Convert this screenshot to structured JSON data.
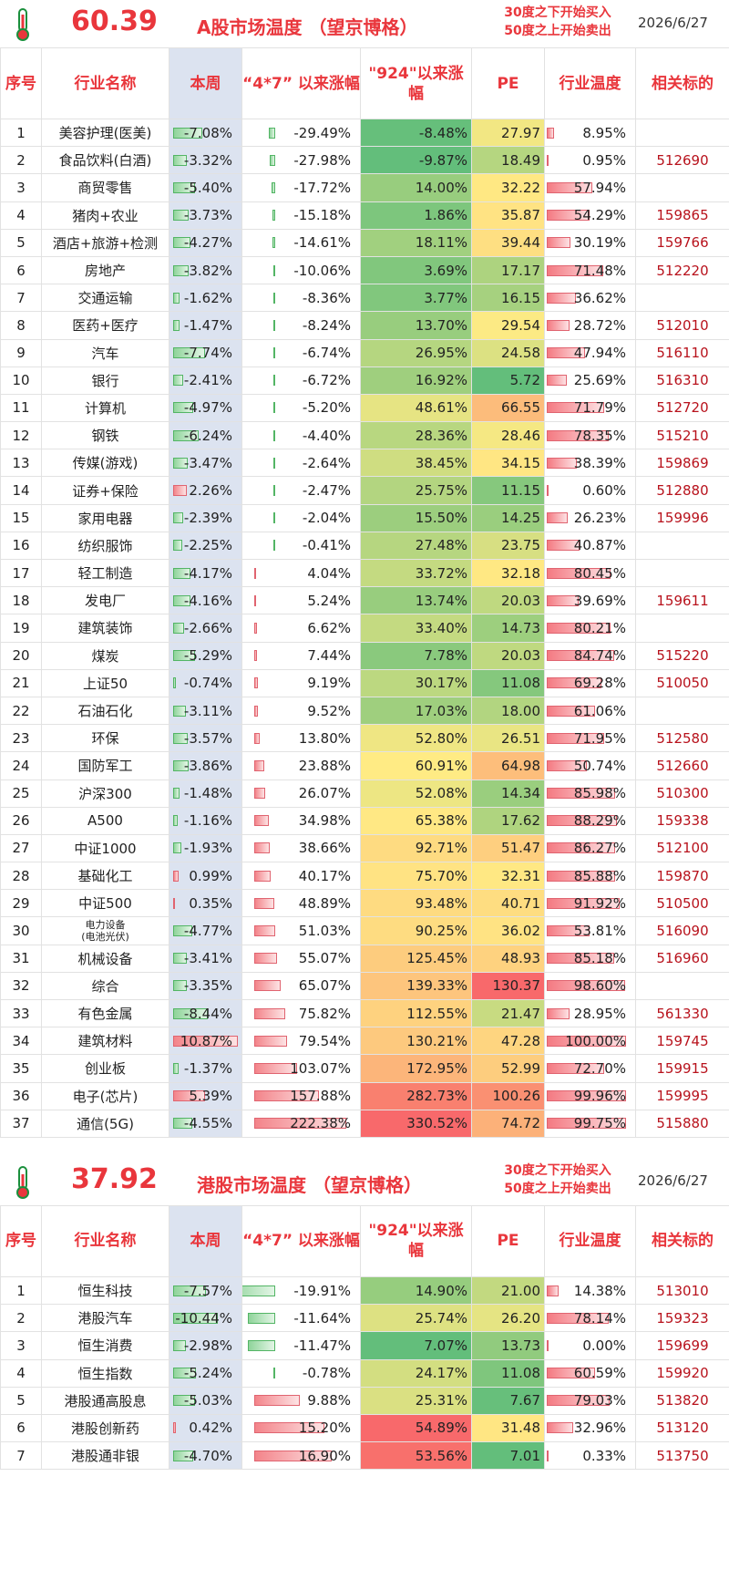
{
  "a_share": {
    "temperature": "60.39",
    "title": "A股市场温度 （望京博格）",
    "note_line1": "30度之下开始买入",
    "note_line2": "50度之上开始卖出",
    "date": "2026/6/27",
    "headers": {
      "seq": "序号",
      "name": "行业名称",
      "week": "本周",
      "since47": "“4*7” 以来涨幅",
      "since924": "\"924\"以来涨幅",
      "pe": "PE",
      "temp": "行业温度",
      "code": "相关标的"
    },
    "rows": [
      {
        "seq": "1",
        "name": "美容护理(医美)",
        "week": "-7.08%",
        "since47": "-29.49%",
        "since924": "-8.48%",
        "pe": "27.97",
        "temp": "8.95%",
        "code": ""
      },
      {
        "seq": "2",
        "name": "食品饮料(白酒)",
        "week": "-3.32%",
        "since47": "-27.98%",
        "since924": "-9.87%",
        "pe": "18.49",
        "temp": "0.95%",
        "code": "512690"
      },
      {
        "seq": "3",
        "name": "商贸零售",
        "week": "-5.40%",
        "since47": "-17.72%",
        "since924": "14.00%",
        "pe": "32.22",
        "temp": "57.94%",
        "code": ""
      },
      {
        "seq": "4",
        "name": "猪肉+农业",
        "week": "-3.73%",
        "since47": "-15.18%",
        "since924": "1.86%",
        "pe": "35.87",
        "temp": "54.29%",
        "code": "159865"
      },
      {
        "seq": "5",
        "name": "酒店+旅游+检测",
        "week": "-4.27%",
        "since47": "-14.61%",
        "since924": "18.11%",
        "pe": "39.44",
        "temp": "30.19%",
        "code": "159766"
      },
      {
        "seq": "6",
        "name": "房地产",
        "week": "-3.82%",
        "since47": "-10.06%",
        "since924": "3.69%",
        "pe": "17.17",
        "temp": "71.48%",
        "code": "512220"
      },
      {
        "seq": "7",
        "name": "交通运输",
        "week": "-1.62%",
        "since47": "-8.36%",
        "since924": "3.77%",
        "pe": "16.15",
        "temp": "36.62%",
        "code": ""
      },
      {
        "seq": "8",
        "name": "医药+医疗",
        "week": "-1.47%",
        "since47": "-8.24%",
        "since924": "13.70%",
        "pe": "29.54",
        "temp": "28.72%",
        "code": "512010"
      },
      {
        "seq": "9",
        "name": "汽车",
        "week": "-7.74%",
        "since47": "-6.74%",
        "since924": "26.95%",
        "pe": "24.58",
        "temp": "47.94%",
        "code": "516110"
      },
      {
        "seq": "10",
        "name": "银行",
        "week": "-2.41%",
        "since47": "-6.72%",
        "since924": "16.92%",
        "pe": "5.72",
        "temp": "25.69%",
        "code": "516310"
      },
      {
        "seq": "11",
        "name": "计算机",
        "week": "-4.97%",
        "since47": "-5.20%",
        "since924": "48.61%",
        "pe": "66.55",
        "temp": "71.79%",
        "code": "512720"
      },
      {
        "seq": "12",
        "name": "钢铁",
        "week": "-6.24%",
        "since47": "-4.40%",
        "since924": "28.36%",
        "pe": "28.46",
        "temp": "78.35%",
        "code": "515210"
      },
      {
        "seq": "13",
        "name": "传媒(游戏)",
        "week": "-3.47%",
        "since47": "-2.64%",
        "since924": "38.45%",
        "pe": "34.15",
        "temp": "38.39%",
        "code": "159869"
      },
      {
        "seq": "14",
        "name": "证券+保险",
        "week": "2.26%",
        "since47": "-2.47%",
        "since924": "25.75%",
        "pe": "11.15",
        "temp": "0.60%",
        "code": "512880"
      },
      {
        "seq": "15",
        "name": "家用电器",
        "week": "-2.39%",
        "since47": "-2.04%",
        "since924": "15.50%",
        "pe": "14.25",
        "temp": "26.23%",
        "code": "159996"
      },
      {
        "seq": "16",
        "name": "纺织服饰",
        "week": "-2.25%",
        "since47": "-0.41%",
        "since924": "27.48%",
        "pe": "23.75",
        "temp": "40.87%",
        "code": ""
      },
      {
        "seq": "17",
        "name": "轻工制造",
        "week": "-4.17%",
        "since47": "4.04%",
        "since924": "33.72%",
        "pe": "32.18",
        "temp": "80.45%",
        "code": ""
      },
      {
        "seq": "18",
        "name": "发电厂",
        "week": "-4.16%",
        "since47": "5.24%",
        "since924": "13.74%",
        "pe": "20.03",
        "temp": "39.69%",
        "code": "159611"
      },
      {
        "seq": "19",
        "name": "建筑装饰",
        "week": "-2.66%",
        "since47": "6.62%",
        "since924": "33.40%",
        "pe": "14.73",
        "temp": "80.21%",
        "code": ""
      },
      {
        "seq": "20",
        "name": "煤炭",
        "week": "-5.29%",
        "since47": "7.44%",
        "since924": "7.78%",
        "pe": "20.03",
        "temp": "84.74%",
        "code": "515220"
      },
      {
        "seq": "21",
        "name": "上证50",
        "week": "-0.74%",
        "since47": "9.19%",
        "since924": "30.17%",
        "pe": "11.08",
        "temp": "69.28%",
        "code": "510050"
      },
      {
        "seq": "22",
        "name": "石油石化",
        "week": "-3.11%",
        "since47": "9.52%",
        "since924": "17.03%",
        "pe": "18.00",
        "temp": "61.06%",
        "code": ""
      },
      {
        "seq": "23",
        "name": "环保",
        "week": "-3.57%",
        "since47": "13.80%",
        "since924": "52.80%",
        "pe": "26.51",
        "temp": "71.95%",
        "code": "512580"
      },
      {
        "seq": "24",
        "name": "国防军工",
        "week": "-3.86%",
        "since47": "23.88%",
        "since924": "60.91%",
        "pe": "64.98",
        "temp": "50.74%",
        "code": "512660"
      },
      {
        "seq": "25",
        "name": "沪深300",
        "week": "-1.48%",
        "since47": "26.07%",
        "since924": "52.08%",
        "pe": "14.34",
        "temp": "85.98%",
        "code": "510300"
      },
      {
        "seq": "26",
        "name": "A500",
        "week": "-1.16%",
        "since47": "34.98%",
        "since924": "65.38%",
        "pe": "17.62",
        "temp": "88.29%",
        "code": "159338"
      },
      {
        "seq": "27",
        "name": "中证1000",
        "week": "-1.93%",
        "since47": "38.66%",
        "since924": "92.71%",
        "pe": "51.47",
        "temp": "86.27%",
        "code": "512100"
      },
      {
        "seq": "28",
        "name": "基础化工",
        "week": "0.99%",
        "since47": "40.17%",
        "since924": "75.70%",
        "pe": "32.31",
        "temp": "85.88%",
        "code": "159870"
      },
      {
        "seq": "29",
        "name": "中证500",
        "week": "0.35%",
        "since47": "48.89%",
        "since924": "93.48%",
        "pe": "40.71",
        "temp": "91.92%",
        "code": "510500"
      },
      {
        "seq": "30",
        "name": "电力设备",
        "name2": "(电池光伏)",
        "week": "-4.77%",
        "since47": "51.03%",
        "since924": "90.25%",
        "pe": "36.02",
        "temp": "53.81%",
        "code": "516090"
      },
      {
        "seq": "31",
        "name": "机械设备",
        "week": "-3.41%",
        "since47": "55.07%",
        "since924": "125.45%",
        "pe": "48.93",
        "temp": "85.18%",
        "code": "516960"
      },
      {
        "seq": "32",
        "name": "综合",
        "week": "-3.35%",
        "since47": "65.07%",
        "since924": "139.33%",
        "pe": "130.37",
        "temp": "98.60%",
        "code": ""
      },
      {
        "seq": "33",
        "name": "有色金属",
        "week": "-8.44%",
        "since47": "75.82%",
        "since924": "112.55%",
        "pe": "21.47",
        "temp": "28.95%",
        "code": "561330"
      },
      {
        "seq": "34",
        "name": "建筑材料",
        "week": "10.87%",
        "since47": "79.54%",
        "since924": "130.21%",
        "pe": "47.28",
        "temp": "100.00%",
        "code": "159745"
      },
      {
        "seq": "35",
        "name": "创业板",
        "week": "-1.37%",
        "since47": "103.07%",
        "since924": "172.95%",
        "pe": "52.99",
        "temp": "72.70%",
        "code": "159915"
      },
      {
        "seq": "36",
        "name": "电子(芯片)",
        "week": "5.39%",
        "since47": "157.88%",
        "since924": "282.73%",
        "pe": "100.26",
        "temp": "99.96%",
        "code": "159995"
      },
      {
        "seq": "37",
        "name": "通信(5G)",
        "week": "-4.55%",
        "since47": "222.38%",
        "since924": "330.52%",
        "pe": "74.72",
        "temp": "99.75%",
        "code": "515880"
      }
    ]
  },
  "hk_share": {
    "temperature": "37.92",
    "title": "港股市场温度 （望京博格）",
    "note_line1": "30度之下开始买入",
    "note_line2": "50度之上开始卖出",
    "date": "2026/6/27",
    "headers": {
      "seq": "序号",
      "name": "行业名称",
      "week": "本周",
      "since47": "“4*7” 以来涨幅",
      "since924": "\"924\"以来涨幅",
      "pe": "PE",
      "temp": "行业温度",
      "code": "相关标的"
    },
    "rows": [
      {
        "seq": "1",
        "name": "恒生科技",
        "week": "-7.57%",
        "since47": "-19.91%",
        "since924": "14.90%",
        "pe": "21.00",
        "temp": "14.38%",
        "code": "513010"
      },
      {
        "seq": "2",
        "name": "港股汽车",
        "week": "-10.44%",
        "since47": "-11.64%",
        "since924": "25.74%",
        "pe": "26.20",
        "temp": "78.14%",
        "code": "159323"
      },
      {
        "seq": "3",
        "name": "恒生消费",
        "week": "-2.98%",
        "since47": "-11.47%",
        "since924": "7.07%",
        "pe": "13.73",
        "temp": "0.00%",
        "code": "159699"
      },
      {
        "seq": "4",
        "name": "恒生指数",
        "week": "-5.24%",
        "since47": "-0.78%",
        "since924": "24.17%",
        "pe": "11.08",
        "temp": "60.59%",
        "code": "159920"
      },
      {
        "seq": "5",
        "name": "港股通高股息",
        "week": "-5.03%",
        "since47": "9.88%",
        "since924": "25.31%",
        "pe": "7.67",
        "temp": "79.03%",
        "code": "513820"
      },
      {
        "seq": "6",
        "name": "港股创新药",
        "week": "0.42%",
        "since47": "15.20%",
        "since924": "54.89%",
        "pe": "31.48",
        "temp": "32.96%",
        "code": "513120"
      },
      {
        "seq": "7",
        "name": "港股通非银",
        "week": "-4.70%",
        "since47": "16.90%",
        "since924": "53.56%",
        "pe": "7.01",
        "temp": "0.33%",
        "code": "513750"
      }
    ]
  },
  "colors": {
    "accent_red": "#e9363c",
    "code_red": "#b8121c",
    "week_col_bg": "#dce3f0"
  }
}
